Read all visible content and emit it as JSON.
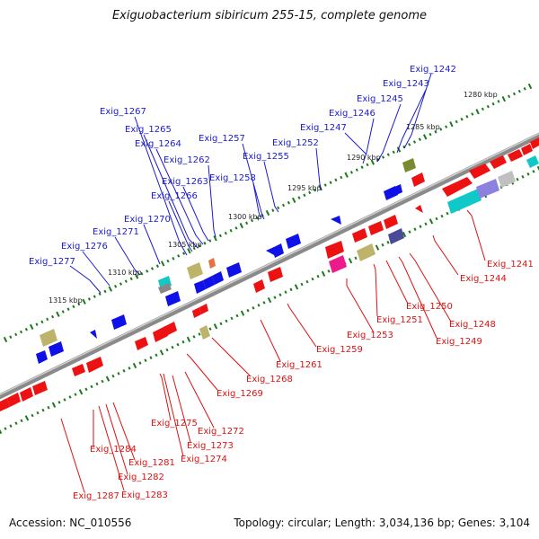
{
  "title": "Exiguobacterium sibiricum 255-15, complete genome",
  "footer": {
    "accession": "Accession: NC_010556",
    "topology": "Topology: circular; Length: 3,034,136 bp; Genes: 3,104"
  },
  "colors": {
    "forward_gene": "#1010e8",
    "reverse_gene": "#ee1111",
    "label_forward": "#1a1ad0",
    "label_reverse": "#dd1111",
    "backbone": "#888888",
    "tick": "#1a7a1a"
  },
  "kbp_ticks": [
    {
      "label": "1280 kbp"
    },
    {
      "label": "1285 kbp"
    },
    {
      "label": "1290 kbp"
    },
    {
      "label": "1295 kbp"
    },
    {
      "label": "1300 kbp"
    },
    {
      "label": "1305 kbp"
    },
    {
      "label": "1310 kbp"
    },
    {
      "label": "1315 kbp"
    }
  ],
  "forward_labels": [
    "Exig_1242",
    "Exig_1243",
    "Exig_1245",
    "Exig_1246",
    "Exig_1247",
    "Exig_1252",
    "Exig_1255",
    "Exig_1257",
    "Exig_1258",
    "Exig_1262",
    "Exig_1263",
    "Exig_1264",
    "Exig_1265",
    "Exig_1266",
    "Exig_1267",
    "Exig_1270",
    "Exig_1271",
    "Exig_1276",
    "Exig_1277"
  ],
  "reverse_labels": [
    "Exig_1241",
    "Exig_1244",
    "Exig_1248",
    "Exig_1249",
    "Exig_1250",
    "Exig_1251",
    "Exig_1253",
    "Exig_1259",
    "Exig_1261",
    "Exig_1268",
    "Exig_1269",
    "Exig_1272",
    "Exig_1273",
    "Exig_1274",
    "Exig_1275",
    "Exig_1281",
    "Exig_1282",
    "Exig_1283",
    "Exig_1284",
    "Exig_1287"
  ]
}
